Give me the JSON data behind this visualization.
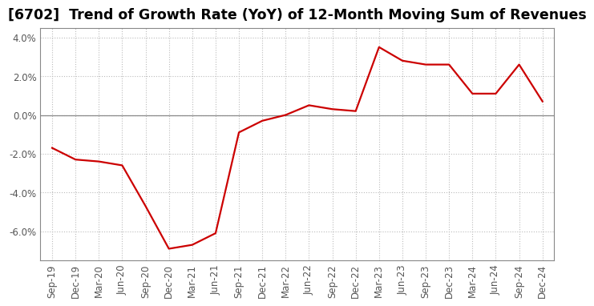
{
  "title": "[6702]  Trend of Growth Rate (YoY) of 12-Month Moving Sum of Revenues",
  "line_color": "#cc0000",
  "background_color": "#ffffff",
  "grid_color": "#bbbbbb",
  "zero_line_color": "#888888",
  "spine_color": "#888888",
  "tick_color": "#555555",
  "x_labels": [
    "Sep-19",
    "Dec-19",
    "Mar-20",
    "Jun-20",
    "Sep-20",
    "Dec-20",
    "Mar-21",
    "Jun-21",
    "Sep-21",
    "Dec-21",
    "Mar-22",
    "Jun-22",
    "Sep-22",
    "Dec-22",
    "Mar-23",
    "Jun-23",
    "Sep-23",
    "Dec-23",
    "Mar-24",
    "Jun-24",
    "Sep-24",
    "Dec-24"
  ],
  "y_values": [
    -1.7,
    -2.3,
    -2.4,
    -2.6,
    -4.7,
    -6.9,
    -6.7,
    -6.1,
    -0.9,
    -0.3,
    0.0,
    0.5,
    0.3,
    0.2,
    3.5,
    2.8,
    2.6,
    2.6,
    1.1,
    1.1,
    2.6,
    0.7
  ],
  "ylim": [
    -7.5,
    4.5
  ],
  "yticks": [
    -6.0,
    -4.0,
    -2.0,
    0.0,
    2.0,
    4.0
  ],
  "title_fontsize": 12.5,
  "tick_fontsize": 8.5,
  "line_width": 1.6
}
